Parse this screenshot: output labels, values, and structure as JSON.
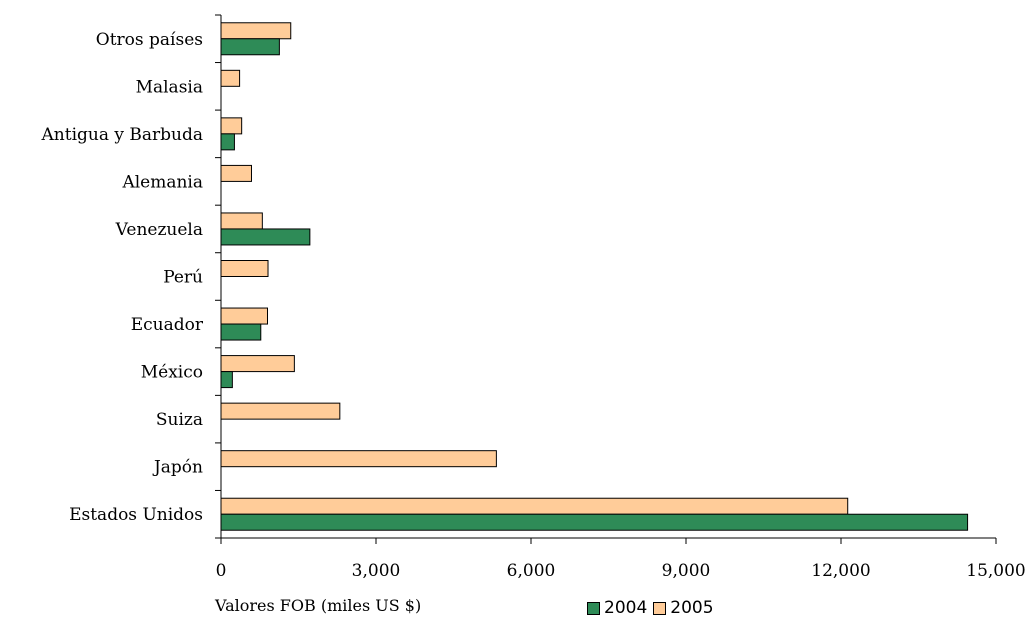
{
  "chart_data": {
    "type": "bar",
    "orientation": "horizontal",
    "categories": [
      "Estados Unidos",
      "Japón",
      "Suiza",
      "México",
      "Ecuador",
      "Perú",
      "Venezuela",
      "Alemania",
      "Antigua y Barbuda",
      "Malasia",
      "Otros países"
    ],
    "series": [
      {
        "name": "2004",
        "color": "#2e8b57",
        "values": [
          14450,
          0,
          0,
          220,
          770,
          0,
          1720,
          0,
          260,
          0,
          1130
        ]
      },
      {
        "name": "2005",
        "color": "#ffcc99",
        "values": [
          12130,
          5330,
          2300,
          1420,
          900,
          910,
          800,
          590,
          400,
          360,
          1350
        ]
      }
    ],
    "xlabel": "Valores FOB (miles US $)",
    "ylabel": "",
    "xlim": [
      0,
      15000
    ],
    "xticks": [
      0,
      3000,
      6000,
      9000,
      12000,
      15000
    ],
    "xtick_labels": [
      "0",
      "3,000",
      "6,000",
      "9,000",
      "12,000",
      "15,000"
    ],
    "grid": false,
    "legend_position": "bottom"
  }
}
